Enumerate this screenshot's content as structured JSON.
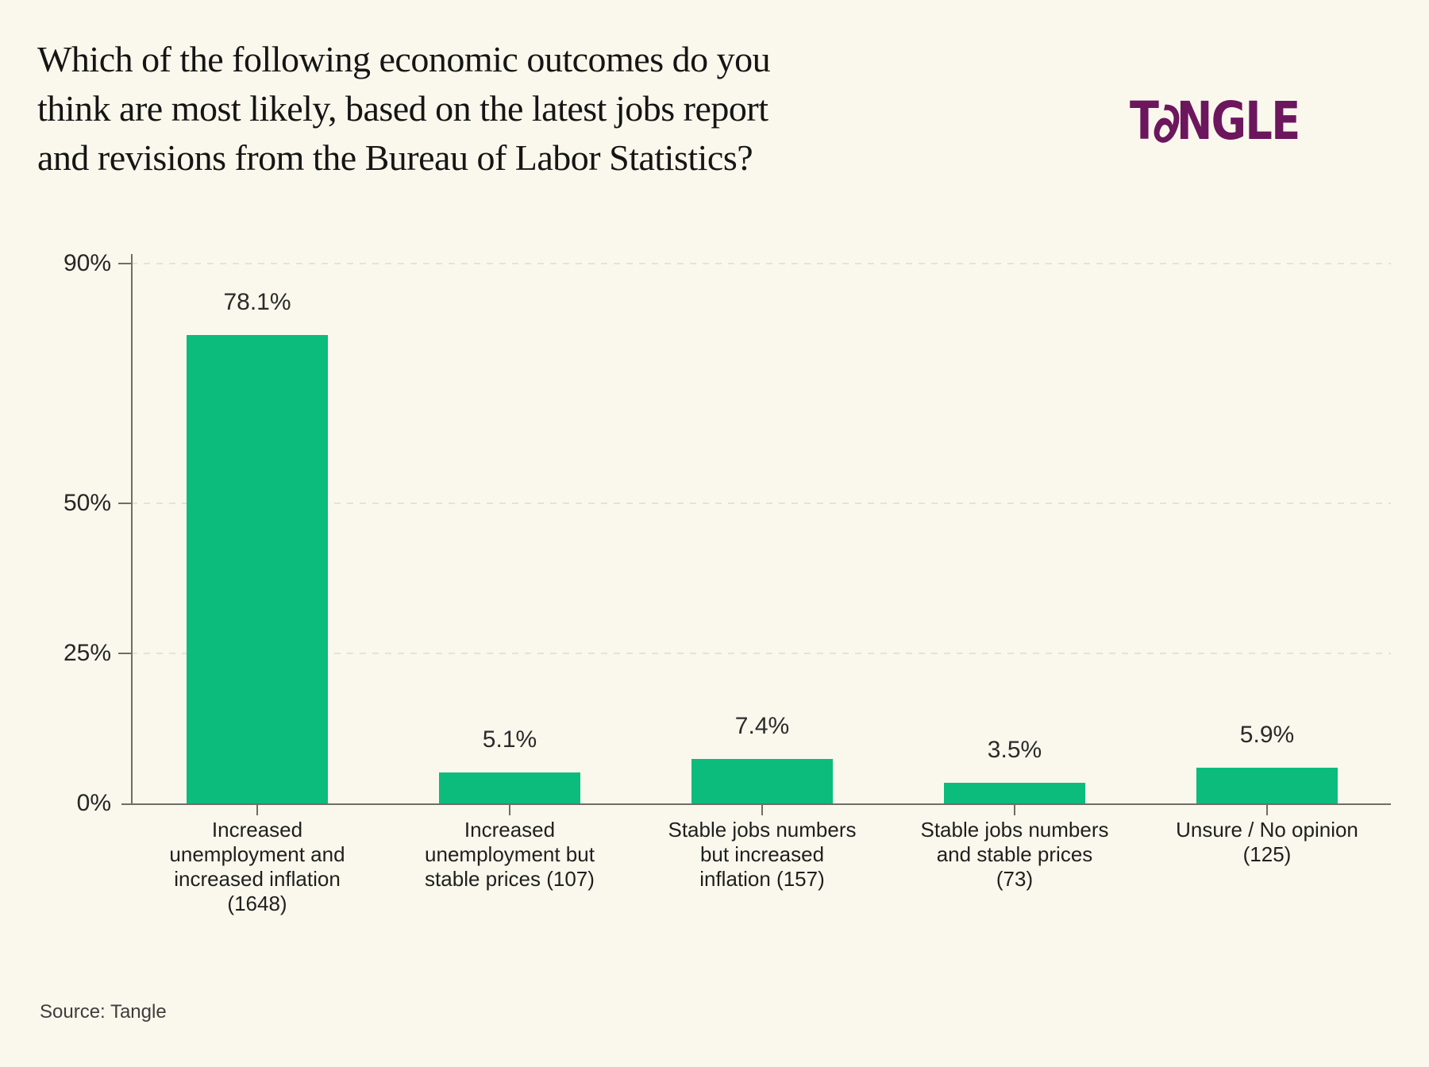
{
  "header": {
    "title_lines": [
      "Which of the following economic outcomes do you",
      "think are most likely, based on the latest jobs report",
      "and revisions from the Bureau of Labor Statistics?"
    ],
    "logo": {
      "text": "TANGLE",
      "prefix": "T",
      "a_glyph": "∂",
      "suffix": "NGLE",
      "color": "#6c165d"
    }
  },
  "chart_data": {
    "type": "bar",
    "title": "Which of the following economic outcomes do you think are most likely, based on the latest jobs report and revisions from the Bureau of Labor Statistics?",
    "categories": [
      "Increased unemployment and increased inflation (1648)",
      "Increased unemployment but stable prices (107)",
      "Stable jobs numbers but increased inflation (157)",
      "Stable jobs numbers and stable prices (73)",
      "Unsure / No opinion (125)"
    ],
    "category_lines": [
      [
        "Increased",
        "unemployment and",
        "increased inflation",
        "(1648)"
      ],
      [
        "Increased",
        "unemployment but",
        "stable prices (107)"
      ],
      [
        "Stable jobs numbers",
        "but increased",
        "inflation (157)"
      ],
      [
        "Stable jobs numbers",
        "and stable prices",
        "(73)"
      ],
      [
        "Unsure / No opinion",
        "(125)"
      ]
    ],
    "values": [
      78.1,
      5.1,
      7.4,
      3.5,
      5.9
    ],
    "value_labels": [
      "78.1%",
      "5.1%",
      "7.4%",
      "3.5%",
      "5.9%"
    ],
    "response_counts": [
      1648,
      107,
      157,
      73,
      125
    ],
    "ylim": [
      0,
      90
    ],
    "yticks": [
      {
        "value": 0,
        "label": "0%"
      },
      {
        "value": 25,
        "label": "25%"
      },
      {
        "value": 50,
        "label": "50%"
      },
      {
        "value": 90,
        "label": "90%"
      }
    ],
    "xlabel": "",
    "ylabel": "",
    "grid": "horizontal dashed at 25%, 50%, 90%",
    "legend": false,
    "bar_color": "#0cbc7c",
    "axis_color": "#6f6d66",
    "background_color": "#faf8ec"
  },
  "footer": {
    "source": "Source: Tangle"
  }
}
